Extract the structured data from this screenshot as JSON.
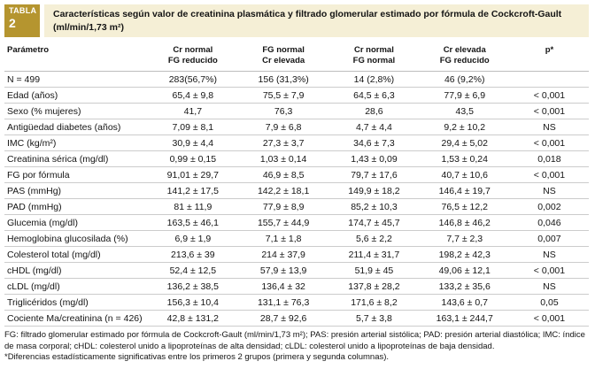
{
  "colors": {
    "accent_gold": "#b5952f",
    "title_band_bg": "#f5efd6",
    "row_line": "#cccccc"
  },
  "table": {
    "tag": "TABLA",
    "number": "2",
    "title": "Características según valor de creatinina plasmática y filtrado glomerular estimado por fórmula de Cockcroft-Gault (ml/min/1,73 m²)",
    "columns": [
      {
        "line1": "Parámetro",
        "line2": ""
      },
      {
        "line1": "Cr normal",
        "line2": "FG reducido"
      },
      {
        "line1": "FG normal",
        "line2": "Cr elevada"
      },
      {
        "line1": "Cr normal",
        "line2": "FG normal"
      },
      {
        "line1": "Cr elevada",
        "line2": "FG reducido"
      },
      {
        "line1": "p*",
        "line2": ""
      }
    ],
    "rows": [
      {
        "param": "N = 499",
        "values": [
          "283(56,7%)",
          "156 (31,3%)",
          "14 (2,8%)",
          "46 (9,2%)"
        ],
        "p": ""
      },
      {
        "param": "Edad (años)",
        "values": [
          "65,4 ± 9,8",
          "75,5 ± 7,9",
          "64,5 ± 6,3",
          "77,9 ± 6,9"
        ],
        "p": "< 0,001"
      },
      {
        "param": "Sexo (% mujeres)",
        "values": [
          "41,7",
          "76,3",
          "28,6",
          "43,5"
        ],
        "p": "< 0,001"
      },
      {
        "param": "Antigüedad diabetes (años)",
        "values": [
          "7,09 ± 8,1",
          "7,9 ± 6,8",
          "4,7 ± 4,4",
          "9,2 ± 10,2"
        ],
        "p": "NS"
      },
      {
        "param": "IMC (kg/m²)",
        "values": [
          "30,9 ± 4,4",
          "27,3 ± 3,7",
          "34,6 ± 7,3",
          "29,4 ± 5,02"
        ],
        "p": "< 0,001"
      },
      {
        "param": "Creatinina sérica (mg/dl)",
        "values": [
          "0,99 ± 0,15",
          "1,03 ± 0,14",
          "1,43 ± 0,09",
          "1,53 ± 0,24"
        ],
        "p": "0,018"
      },
      {
        "param": "FG por fórmula",
        "values": [
          "91,01 ± 29,7",
          "46,9 ± 8,5",
          "79,7 ± 17,6",
          "40,7 ± 10,6"
        ],
        "p": "< 0,001"
      },
      {
        "param": "PAS (mmHg)",
        "values": [
          "141,2 ± 17,5",
          "142,2 ± 18,1",
          "149,9 ± 18,2",
          "146,4 ± 19,7"
        ],
        "p": "NS"
      },
      {
        "param": "PAD (mmHg)",
        "values": [
          "81 ± 11,9",
          "77,9 ± 8,9",
          "85,2 ± 10,3",
          "76,5 ± 12,2"
        ],
        "p": "0,002"
      },
      {
        "param": "Glucemia (mg/dl)",
        "values": [
          "163,5 ± 46,1",
          "155,7 ± 44,9",
          "174,7 ± 45,7",
          "146,8 ± 46,2"
        ],
        "p": "0,046"
      },
      {
        "param": "Hemoglobina glucosilada (%)",
        "values": [
          "6,9 ± 1,9",
          "7,1 ± 1,8",
          "5,6 ± 2,2",
          "7,7 ± 2,3"
        ],
        "p": "0,007"
      },
      {
        "param": "Colesterol total (mg/dl)",
        "values": [
          "213,6 ± 39",
          "214 ± 37,9",
          "211,4 ± 31,7",
          "198,2 ± 42,3"
        ],
        "p": "NS"
      },
      {
        "param": "cHDL (mg/dl)",
        "values": [
          "52,4 ± 12,5",
          "57,9 ± 13,9",
          "51,9 ± 45",
          "49,06 ± 12,1"
        ],
        "p": "< 0,001"
      },
      {
        "param": "cLDL (mg/dl)",
        "values": [
          "136,2 ± 38,5",
          "136,4 ± 32",
          "137,8 ± 28,2",
          "133,2 ± 35,6"
        ],
        "p": "NS"
      },
      {
        "param": "Triglicéridos (mg/dl)",
        "values": [
          "156,3 ± 10,4",
          "131,1 ± 76,3",
          "171,6 ± 8,2",
          "143,6 ± 0,7"
        ],
        "p": "0,05"
      },
      {
        "param": "Cociente Ma/creatinina (n = 426)",
        "values": [
          "42,8 ± 131,2",
          "28,7 ± 92,6",
          "5,7 ± 3,8",
          "163,1 ± 244,7"
        ],
        "p": "< 0,001"
      }
    ],
    "footnotes": [
      "FG: filtrado glomerular estimado por fórmula de Cockcroft-Gault (ml/min/1,73 m²); PAS: presión arterial sistólica; PAD: presión arterial diastólica; IMC: índice de masa corporal; cHDL: colesterol unido a lipoproteínas de alta densidad; cLDL: colesterol unido a lipoproteínas de baja densidad.",
      "*Diferencias estadísticamente significativas entre los primeros 2 grupos (primera y segunda columnas)."
    ]
  }
}
